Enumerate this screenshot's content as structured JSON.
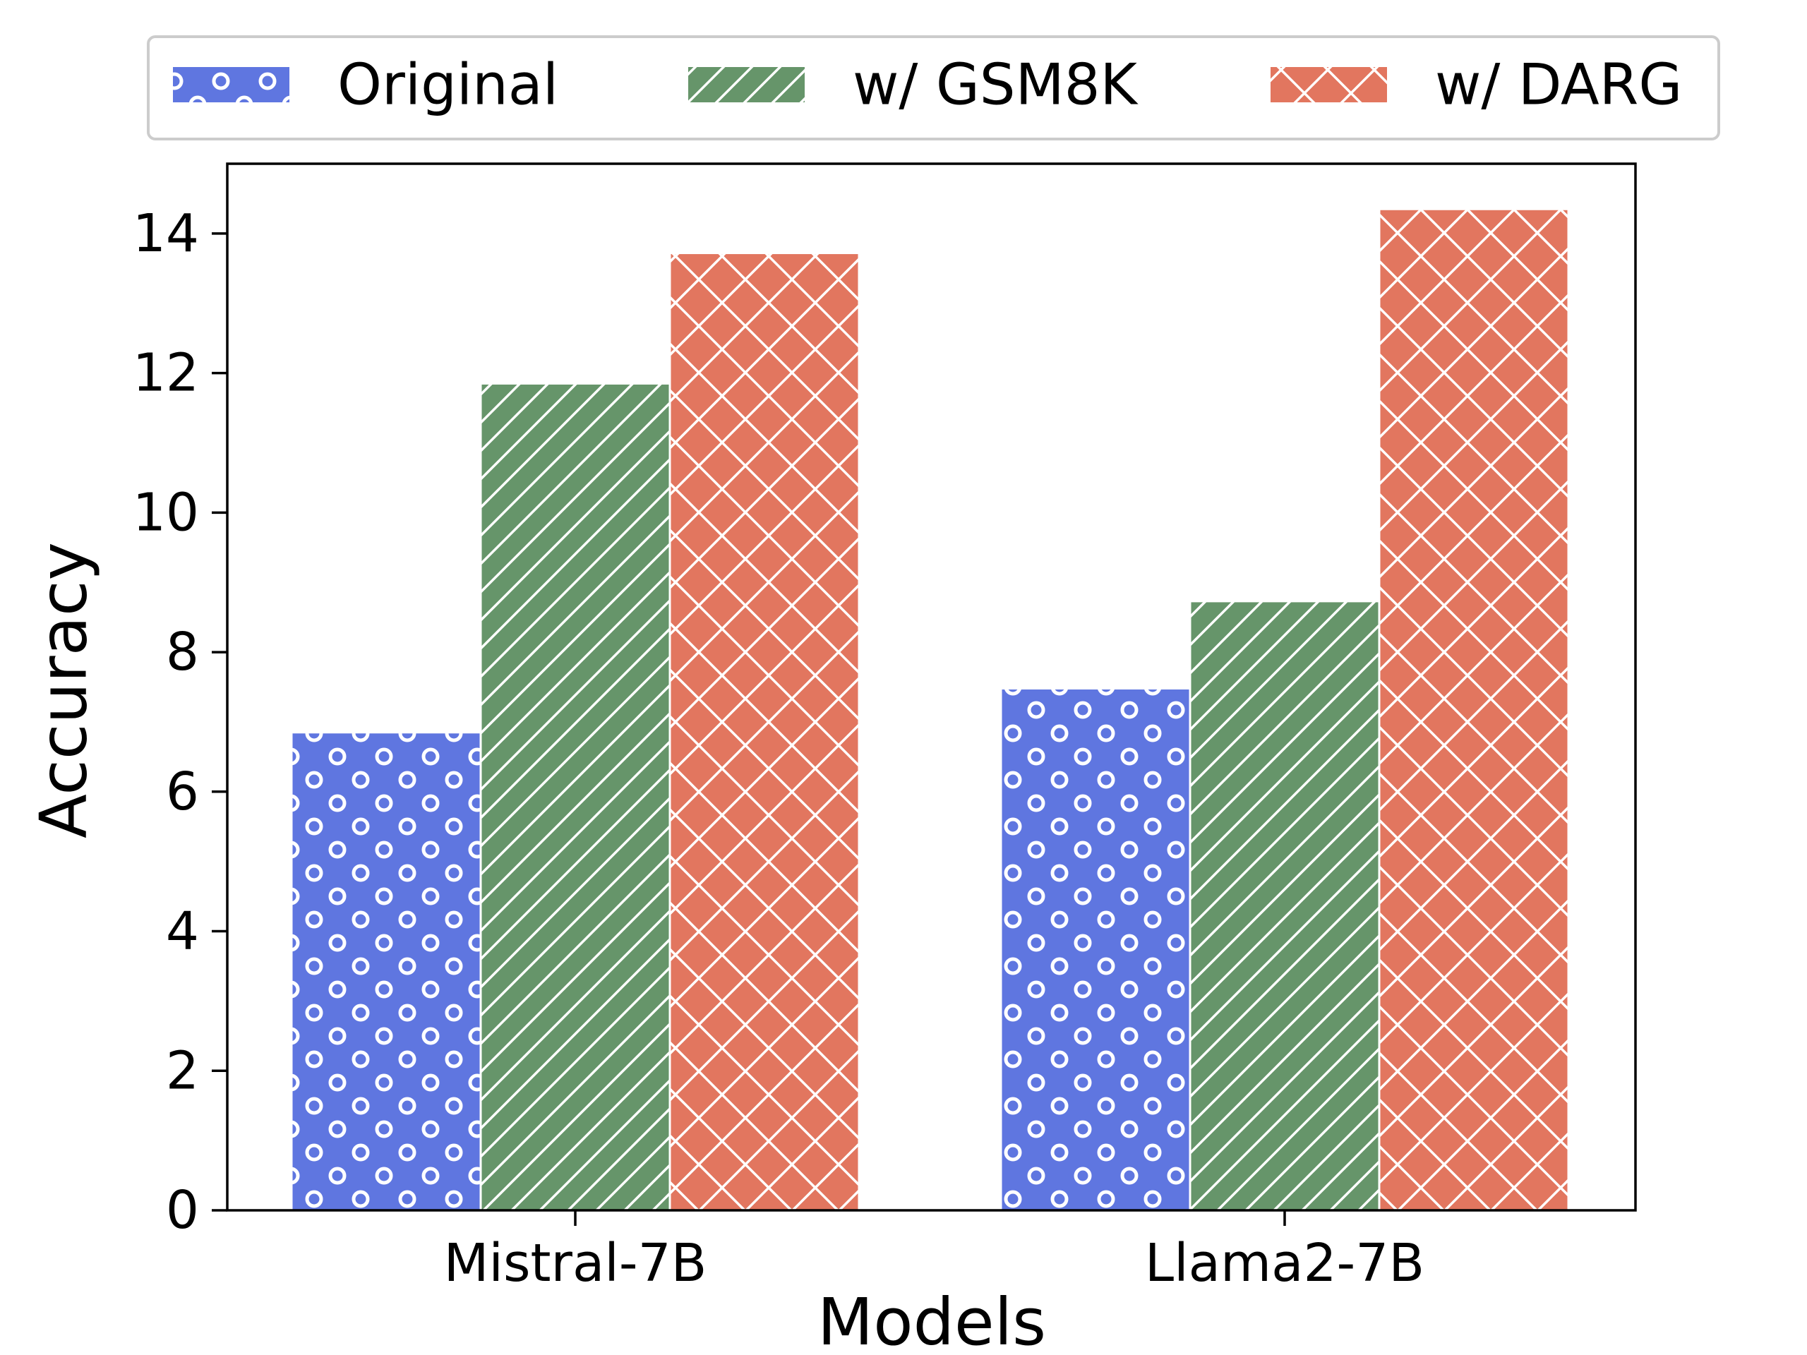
{
  "chart_data": {
    "type": "bar",
    "categories": [
      "Mistral-7B",
      "Llama2-7B"
    ],
    "series": [
      {
        "name": "Original",
        "values": [
          6.85,
          7.48
        ],
        "color": "#5f76e0",
        "hatch": "circles"
      },
      {
        "name": "w/ GSM8K",
        "values": [
          11.85,
          8.73
        ],
        "color": "#66956a",
        "hatch": "diagonal"
      },
      {
        "name": "w/ DARG",
        "values": [
          13.72,
          14.35
        ],
        "color": "#e2765f",
        "hatch": "cross"
      }
    ],
    "title": "",
    "xlabel": "Models",
    "ylabel": "Accuracy",
    "ylim": [
      0,
      15
    ],
    "yticks": [
      0,
      2,
      4,
      6,
      8,
      10,
      12,
      14
    ],
    "grid": false,
    "legend_position": "top-center"
  }
}
